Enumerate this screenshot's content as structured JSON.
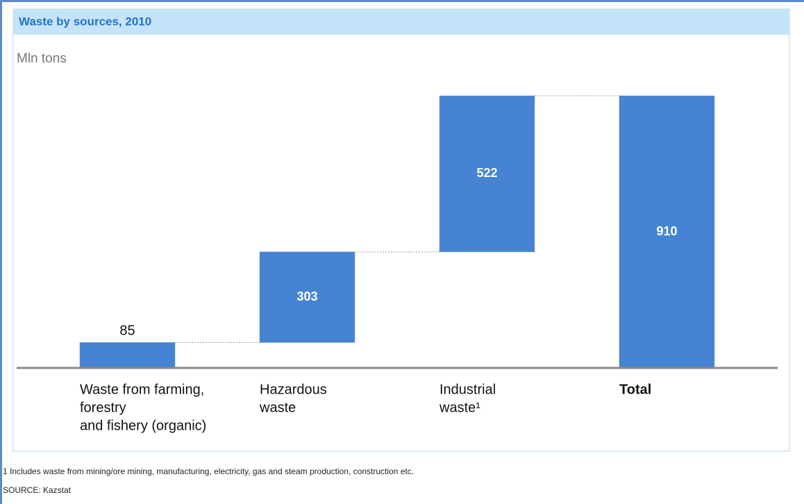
{
  "chart_data": {
    "type": "waterfall",
    "title": "Waste by sources, 2010",
    "subtitle": "Mln tons",
    "categories": [
      [
        "Waste from farming,",
        "forestry",
        "and fishery (organic)"
      ],
      [
        "Hazardous",
        "waste"
      ],
      [
        "Industrial",
        "waste¹"
      ],
      [
        "Total"
      ]
    ],
    "values": [
      85,
      303,
      522,
      910
    ],
    "color": "#4783d3",
    "footnote": "1 Includes waste from mining/ore mining, manufacturing, electricity, gas and steam production, construction etc.",
    "source": "SOURCE: Kazstat"
  }
}
